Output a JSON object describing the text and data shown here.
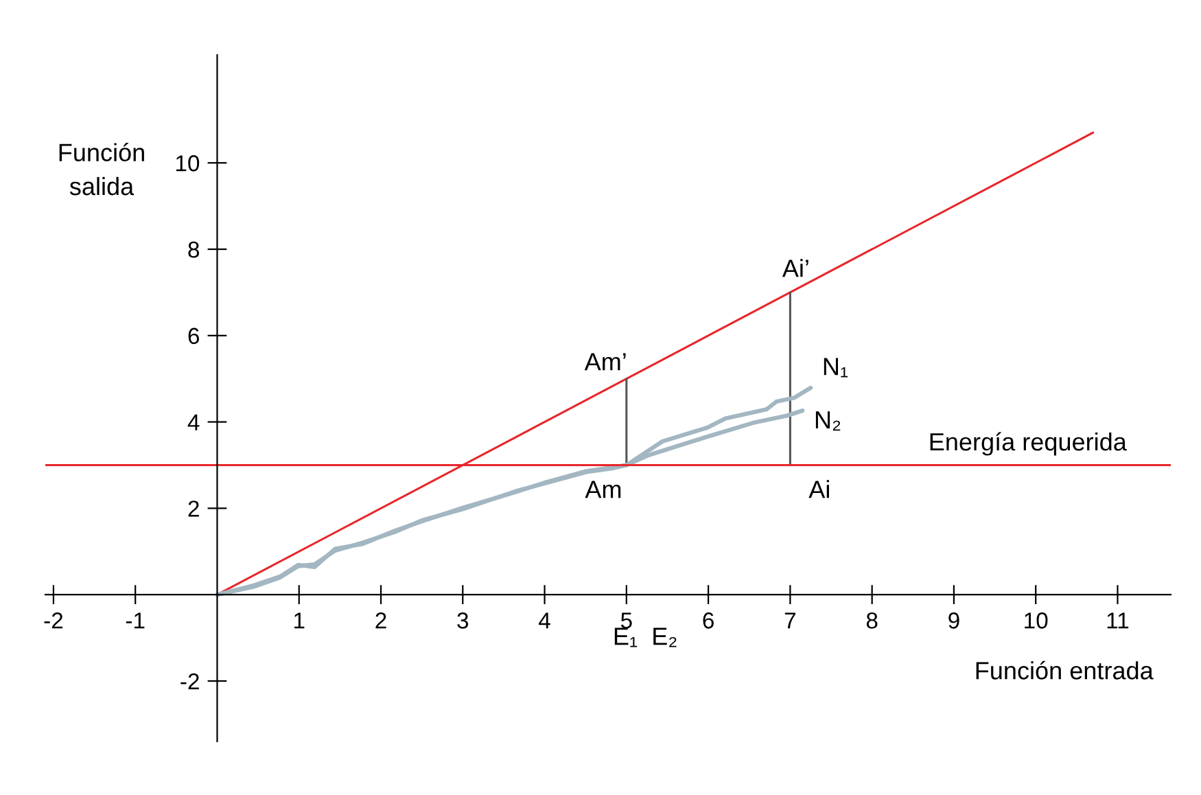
{
  "chart_data": {
    "type": "line",
    "xlabel": "Función entrada",
    "ylabel": "Función\nsalida",
    "xlim": [
      -2.1,
      11.65
    ],
    "ylim": [
      -3.4,
      12.5
    ],
    "xticks": [
      -2,
      -1,
      1,
      2,
      3,
      4,
      5,
      6,
      7,
      8,
      9,
      10,
      11
    ],
    "yticks": [
      -2,
      2,
      4,
      6,
      8,
      10
    ],
    "grid": false,
    "legend": false,
    "marker": "none",
    "line_style": "solid",
    "series": [
      {
        "x": [
          0,
          10.7
        ],
        "values": [
          0,
          10.7
        ],
        "color": "#e8262a"
      },
      {
        "x": [
          5,
          5
        ],
        "values": [
          3,
          5
        ],
        "color": "#555555"
      },
      {
        "x": [
          7,
          7
        ],
        "values": [
          3,
          7
        ],
        "color": "#555555"
      },
      {
        "name": "N₁",
        "color": "#a3b7c2",
        "x": [
          0,
          0.44,
          0.77,
          0.99,
          1.19,
          1.44,
          1.77,
          2.17,
          2.5,
          3.0,
          3.67,
          4.01,
          4.51,
          4.84,
          5,
          5.44,
          5.99,
          6.21,
          6.71,
          6.83,
          7.05,
          7.25
        ],
        "values": [
          0,
          0.21,
          0.42,
          0.69,
          0.64,
          1.06,
          1.17,
          1.48,
          1.7,
          2.01,
          2.39,
          2.6,
          2.86,
          2.95,
          3.0,
          3.55,
          3.87,
          4.08,
          4.29,
          4.47,
          4.56,
          4.79
        ]
      },
      {
        "name": "N₂",
        "color": "#a3b7c2",
        "x": [
          0,
          0.44,
          0.77,
          0.99,
          1.19,
          1.44,
          1.77,
          2.17,
          2.5,
          3.0,
          3.67,
          4.01,
          4.51,
          4.84,
          5,
          5.27,
          5.99,
          6.55,
          6.95,
          7.15
        ],
        "values": [
          0,
          0.18,
          0.4,
          0.66,
          0.7,
          1.02,
          1.2,
          1.45,
          1.72,
          1.98,
          2.41,
          2.58,
          2.84,
          2.93,
          3.0,
          3.23,
          3.66,
          3.98,
          4.14,
          4.26
        ]
      }
    ],
    "ref_lines": [
      {
        "axis": "y",
        "value": 3,
        "label": "Energía requerida",
        "color": "#e8262a"
      }
    ],
    "annotations": [
      "Am’",
      "Ai’",
      "Am",
      "Ai",
      "E₁  E₂"
    ]
  }
}
